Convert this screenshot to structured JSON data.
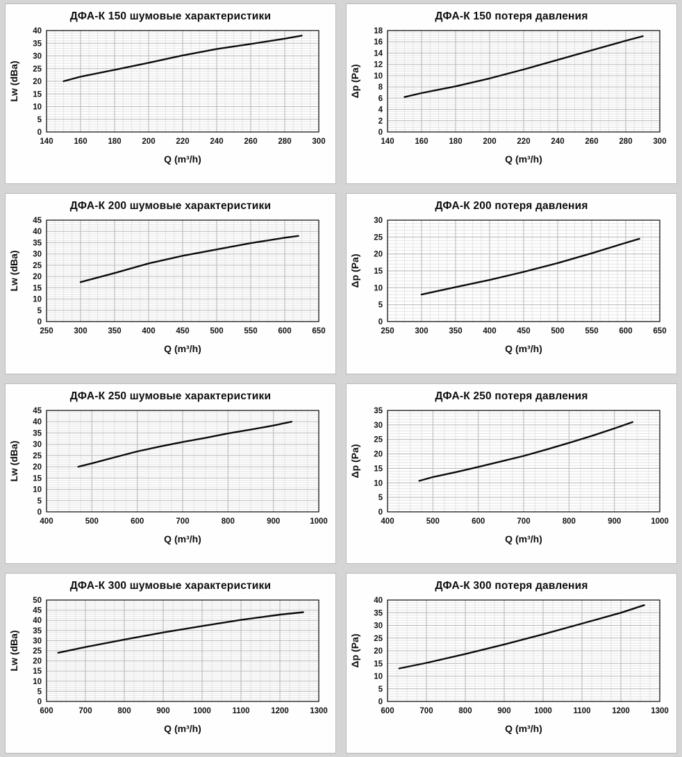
{
  "page": {
    "background_color": "#d5d5d5",
    "panel_background": "#fefefe",
    "panel_border_color": "#b9b9b9",
    "curve_color": "#0a0a0a",
    "grid_minor_color": "#e4e4e4",
    "grid_major_color": "#b4b4b4",
    "plot_border_color": "#000000"
  },
  "chart_data": [
    {
      "type": "line",
      "title": "ДФА-К 150 шумовые характеристики",
      "xlabel": "Q (m³/h)",
      "ylabel": "Lw (dBa)",
      "xlim": [
        140,
        300
      ],
      "xstep": 20,
      "ylim": [
        0,
        40
      ],
      "ystep": 5,
      "grid": true,
      "legend": false,
      "x": [
        150,
        160,
        180,
        200,
        220,
        240,
        260,
        280,
        290
      ],
      "y": [
        20,
        21.8,
        24.5,
        27.3,
        30.2,
        32.7,
        34.7,
        36.8,
        38
      ]
    },
    {
      "type": "line",
      "title": "ДФА-К 150 потеря давления",
      "xlabel": "Q (m³/h)",
      "ylabel": "Δp (Pa)",
      "xlim": [
        140,
        300
      ],
      "xstep": 20,
      "ylim": [
        0,
        18
      ],
      "ystep": 2,
      "grid": true,
      "legend": false,
      "x": [
        150,
        160,
        180,
        200,
        220,
        240,
        260,
        280,
        290
      ],
      "y": [
        6.2,
        6.9,
        8.1,
        9.5,
        11.1,
        12.8,
        14.5,
        16.2,
        17
      ]
    },
    {
      "type": "line",
      "title": "ДФА-К 200 шумовые характеристики",
      "xlabel": "Q (m³/h)",
      "ylabel": "Lw (dBa)",
      "xlim": [
        250,
        650
      ],
      "xstep": 50,
      "ylim": [
        0,
        45
      ],
      "ystep": 5,
      "grid": true,
      "legend": false,
      "x": [
        300,
        350,
        400,
        450,
        500,
        550,
        600,
        620
      ],
      "y": [
        17.5,
        21.5,
        25.8,
        29.2,
        32,
        34.8,
        37.2,
        38
      ]
    },
    {
      "type": "line",
      "title": "ДФА-К 200 потеря давления",
      "xlabel": "Q (m³/h)",
      "ylabel": "Δp (Pa)",
      "xlim": [
        250,
        650
      ],
      "xstep": 50,
      "ylim": [
        0,
        30
      ],
      "ystep": 5,
      "grid": true,
      "legend": false,
      "x": [
        300,
        350,
        400,
        450,
        500,
        550,
        600,
        620
      ],
      "y": [
        8,
        10.2,
        12.3,
        14.7,
        17.3,
        20.2,
        23.3,
        24.5
      ]
    },
    {
      "type": "line",
      "title": "ДФА-К 250 шумовые характеристики",
      "xlabel": "Q (m³/h)",
      "ylabel": "Lw (dBa)",
      "xlim": [
        400,
        1000
      ],
      "xstep": 100,
      "ylim": [
        0,
        45
      ],
      "ystep": 5,
      "grid": true,
      "legend": false,
      "x": [
        470,
        500,
        550,
        600,
        650,
        700,
        750,
        800,
        850,
        900,
        940
      ],
      "y": [
        20,
        21.5,
        24.2,
        26.8,
        29,
        31,
        32.8,
        34.8,
        36.5,
        38.3,
        40
      ]
    },
    {
      "type": "line",
      "title": "ДФА-К 250 потеря давления",
      "xlabel": "Q (m³/h)",
      "ylabel": "Δp (Pa)",
      "xlim": [
        400,
        1000
      ],
      "xstep": 100,
      "ylim": [
        0,
        35
      ],
      "ystep": 5,
      "grid": true,
      "legend": false,
      "x": [
        470,
        500,
        550,
        600,
        650,
        700,
        750,
        800,
        850,
        900,
        940
      ],
      "y": [
        10.7,
        12,
        13.7,
        15.5,
        17.4,
        19.3,
        21.5,
        23.8,
        26.2,
        28.8,
        31
      ]
    },
    {
      "type": "line",
      "title": "ДФА-К 300 шумовые характеристики",
      "xlabel": "Q (m³/h)",
      "ylabel": "Lw (dBa)",
      "xlim": [
        600,
        1300
      ],
      "xstep": 100,
      "ylim": [
        0,
        50
      ],
      "ystep": 5,
      "grid": true,
      "legend": false,
      "x": [
        630,
        700,
        800,
        900,
        1000,
        1100,
        1200,
        1260
      ],
      "y": [
        24,
        26.8,
        30.5,
        34,
        37.2,
        40.2,
        42.8,
        44
      ]
    },
    {
      "type": "line",
      "title": "ДФА-К 300 потеря давления",
      "xlabel": "Q (m³/h)",
      "ylabel": "Δp (Pa)",
      "xlim": [
        600,
        1300
      ],
      "xstep": 100,
      "ylim": [
        0,
        40
      ],
      "ystep": 5,
      "grid": true,
      "legend": false,
      "x": [
        630,
        700,
        800,
        900,
        1000,
        1100,
        1200,
        1260
      ],
      "y": [
        13,
        15.2,
        18.7,
        22.5,
        26.5,
        30.7,
        35,
        38
      ]
    }
  ]
}
